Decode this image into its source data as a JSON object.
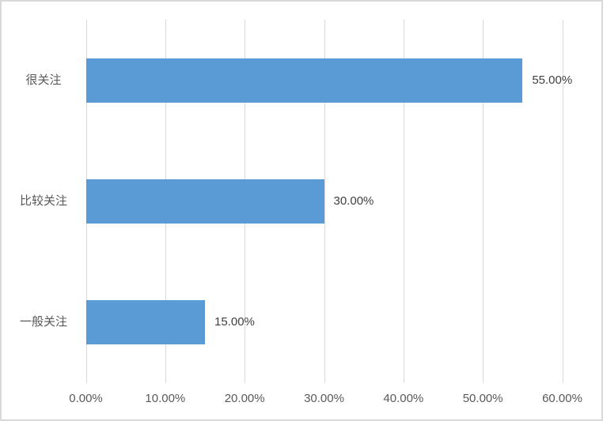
{
  "chart_data": {
    "type": "bar",
    "orientation": "horizontal",
    "title": "",
    "categories": [
      "很关注",
      "比较关注",
      "一般关注"
    ],
    "values": [
      55,
      30,
      15
    ],
    "value_labels": [
      "55.00%",
      "30.00%",
      "15.00%"
    ],
    "x_ticks": [
      "0.00%",
      "10.00%",
      "20.00%",
      "30.00%",
      "40.00%",
      "50.00%",
      "60.00%"
    ],
    "x_tick_values": [
      0,
      10,
      20,
      30,
      40,
      50,
      60
    ],
    "xlim": [
      0,
      60
    ],
    "grid": "vertical-only",
    "legend": "none",
    "colors": {
      "bar": "#5b9bd5",
      "gridline": "#d9d9d9",
      "chart_border": "#d9d9d9",
      "axis_text": "#595959",
      "category_text": "#595959",
      "data_label_text": "#404040",
      "background": "#ffffff"
    }
  }
}
